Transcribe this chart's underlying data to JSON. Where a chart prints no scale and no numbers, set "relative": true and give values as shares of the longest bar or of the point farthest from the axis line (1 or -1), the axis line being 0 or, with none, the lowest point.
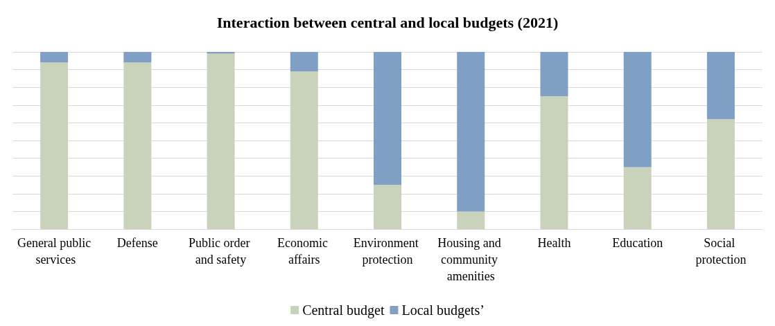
{
  "chart_data": {
    "type": "bar",
    "title": "Interaction between central and local budgets (2021)",
    "categories": [
      "General public services",
      "Defense",
      "Public order and safety",
      "Economic affairs",
      "Environment protection",
      "Housing and community amenities",
      "Health",
      "Education",
      "Social protection"
    ],
    "series": [
      {
        "name": "Central budget",
        "color": "#c9d3bc",
        "values": [
          0.94,
          0.94,
          0.99,
          0.89,
          0.25,
          0.1,
          0.75,
          0.35,
          0.62
        ]
      },
      {
        "name": "Local budgets’",
        "color": "#7f9fc4",
        "values": [
          0.06,
          0.06,
          0.01,
          0.11,
          0.75,
          0.9,
          0.25,
          0.65,
          0.38
        ]
      }
    ],
    "stacked": true,
    "relative": true,
    "grid": "y",
    "legend": "bottom"
  }
}
